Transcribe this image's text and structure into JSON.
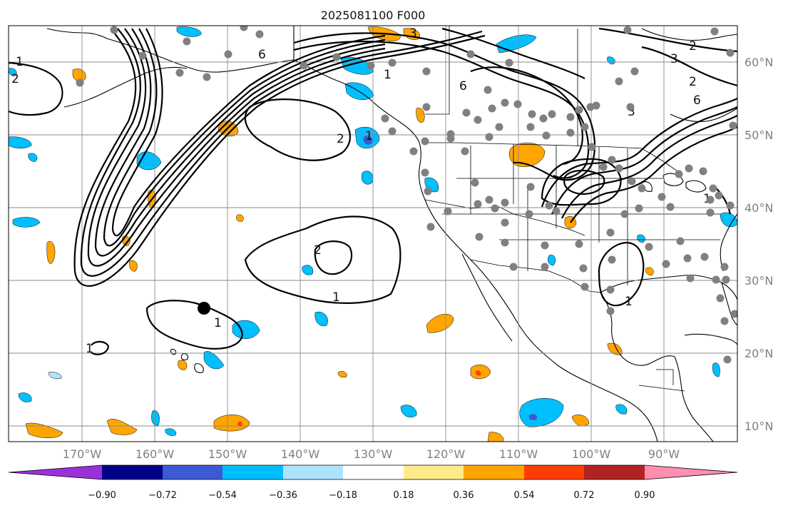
{
  "title": "2025081100 F000",
  "lat_labels": [
    "60°N",
    "50°N",
    "40°N",
    "30°N",
    "20°N",
    "10°N"
  ],
  "lon_labels": [
    "170°W",
    "160°W",
    "150°W",
    "140°W",
    "130°W",
    "120°W",
    "110°W",
    "100°W",
    "90°W"
  ],
  "colorbar": {
    "tick_labels": [
      "−0.90",
      "−0.72",
      "−0.54",
      "−0.36",
      "−0.18",
      "0.18",
      "0.36",
      "0.54",
      "0.72",
      "0.90"
    ],
    "colors": [
      "#9b30d9",
      "#000088",
      "#3c5ad2",
      "#00bfff",
      "#aee3ff",
      "#ffffff",
      "#ffea8a",
      "#ffa500",
      "#ff3d00",
      "#b22222",
      "#ff8fb1"
    ]
  },
  "contour_labels": [
    "1",
    "2",
    "6",
    "3",
    "1",
    "2",
    "6",
    "3",
    "1",
    "2",
    "1",
    "2",
    "1",
    "1",
    "3",
    "1",
    "6",
    "2",
    "1"
  ],
  "colors": {
    "station_dot": "#808080",
    "marker_dot": "#000000",
    "grid": "#8a8a8a",
    "axis_label": "#808080"
  }
}
